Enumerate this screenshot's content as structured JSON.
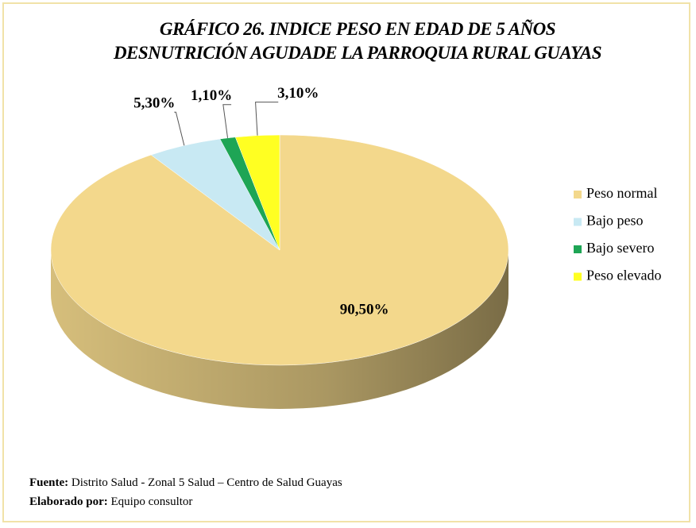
{
  "chart_data": {
    "type": "pie",
    "title": "GRÁFICO 26. INDICE PESO EN EDAD DE 5 AÑOS DESNUTRICIÓN AGUDADE LA PARROQUIA RURAL GUAYAS",
    "categories": [
      "Peso normal",
      "Bajo peso",
      "Bajo severo",
      "Peso elevado"
    ],
    "values": [
      90.5,
      5.3,
      1.1,
      3.1
    ],
    "value_labels": [
      "90,50%",
      "5,30%",
      "1,10%",
      "3,10%"
    ],
    "colors": [
      "#f3d88c",
      "#c8e9f3",
      "#1ea555",
      "#ffff22"
    ],
    "legend": "right"
  },
  "footer": {
    "source": {
      "label": "Fuente:",
      "text": "Distrito Salud - Zonal 5 Salud – Centro de Salud Guayas"
    },
    "credit": {
      "label": "Elaborado por:",
      "text": "Equipo consultor"
    }
  }
}
